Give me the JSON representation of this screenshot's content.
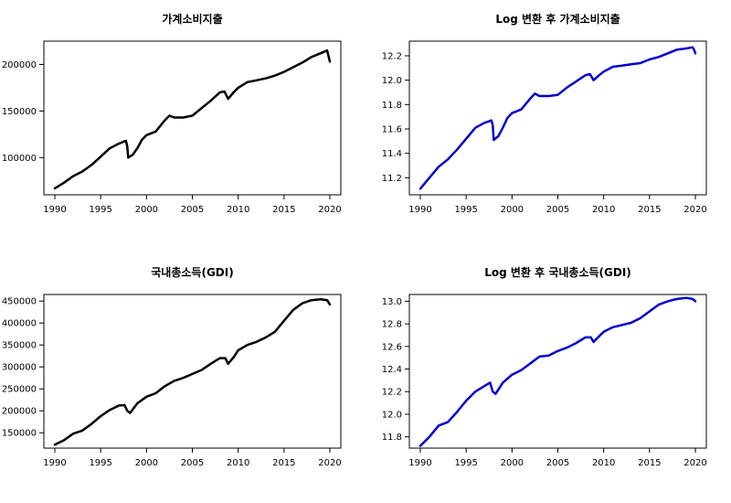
{
  "chart_data": [
    {
      "type": "line",
      "title": "가계소비지출",
      "color": "#000000",
      "xlim": [
        1990,
        2020
      ],
      "ylim": [
        60000,
        225000
      ],
      "xticks": [
        1990,
        1995,
        2000,
        2005,
        2010,
        2015,
        2020
      ],
      "xtick_labels": [
        "1990",
        "1995",
        "2000",
        "2005",
        "2010",
        "2015",
        "2020"
      ],
      "yticks": [
        100000,
        150000,
        200000
      ],
      "ytick_labels": [
        "100000",
        "150000",
        "200000"
      ],
      "x": [
        1990.0,
        1991.0,
        1992.0,
        1993.0,
        1994.0,
        1995.0,
        1996.0,
        1997.0,
        1997.75,
        1997.9,
        1998.0,
        1998.5,
        1999.0,
        1999.5,
        2000.0,
        2001.0,
        2002.0,
        2002.5,
        2003.0,
        2004.0,
        2005.0,
        2006.0,
        2007.0,
        2008.0,
        2008.5,
        2008.9,
        2009.5,
        2010.0,
        2011.0,
        2012.0,
        2013.0,
        2014.0,
        2015.0,
        2016.0,
        2017.0,
        2018.0,
        2019.0,
        2019.7,
        2019.85,
        2020.0
      ],
      "y": [
        67000,
        73000,
        80000,
        85000,
        92000,
        101000,
        110000,
        115000,
        118000,
        112000,
        100000,
        103000,
        110000,
        119000,
        124000,
        128000,
        140000,
        145000,
        143000,
        143000,
        145000,
        153000,
        161000,
        170000,
        171000,
        163000,
        170000,
        175000,
        181000,
        183000,
        185000,
        188000,
        192000,
        197000,
        202000,
        208000,
        212000,
        215000,
        209000,
        203000
      ]
    },
    {
      "type": "line",
      "title": "Log 변환 후 가계소비지출",
      "color": "#0000cc",
      "xlim": [
        1990,
        2020
      ],
      "ylim": [
        11.06,
        12.32
      ],
      "xticks": [
        1990,
        1995,
        2000,
        2005,
        2010,
        2015,
        2020
      ],
      "xtick_labels": [
        "1990",
        "1995",
        "2000",
        "2005",
        "2010",
        "2015",
        "2020"
      ],
      "yticks": [
        11.2,
        11.4,
        11.6,
        11.8,
        12.0,
        12.2
      ],
      "ytick_labels": [
        "11.2",
        "11.4",
        "11.6",
        "11.8",
        "12.0",
        "12.2"
      ],
      "x": [
        1990.0,
        1991.0,
        1992.0,
        1993.0,
        1994.0,
        1995.0,
        1996.0,
        1997.0,
        1997.75,
        1997.9,
        1998.0,
        1998.5,
        1999.0,
        1999.5,
        2000.0,
        2001.0,
        2002.0,
        2002.5,
        2003.0,
        2004.0,
        2005.0,
        2006.0,
        2007.0,
        2008.0,
        2008.5,
        2008.9,
        2009.5,
        2010.0,
        2011.0,
        2012.0,
        2013.0,
        2014.0,
        2015.0,
        2016.0,
        2017.0,
        2018.0,
        2019.0,
        2019.7,
        2019.85,
        2020.0
      ],
      "y": [
        11.11,
        11.2,
        11.29,
        11.35,
        11.43,
        11.52,
        11.61,
        11.65,
        11.67,
        11.63,
        11.51,
        11.54,
        11.61,
        11.69,
        11.73,
        11.76,
        11.85,
        11.89,
        11.87,
        11.87,
        11.88,
        11.94,
        11.99,
        12.04,
        12.05,
        12.0,
        12.04,
        12.07,
        12.11,
        12.12,
        12.13,
        12.14,
        12.17,
        12.19,
        12.22,
        12.25,
        12.26,
        12.27,
        12.25,
        12.22
      ]
    },
    {
      "type": "line",
      "title": "국내총소득(GDI)",
      "color": "#000000",
      "xlim": [
        1990,
        2020
      ],
      "ylim": [
        115000,
        465000
      ],
      "xticks": [
        1990,
        1995,
        2000,
        2005,
        2010,
        2015,
        2020
      ],
      "xtick_labels": [
        "1990",
        "1995",
        "2000",
        "2005",
        "2010",
        "2015",
        "2020"
      ],
      "yticks": [
        150000,
        200000,
        250000,
        300000,
        350000,
        400000,
        450000
      ],
      "ytick_labels": [
        "150000",
        "200000",
        "250000",
        "300000",
        "350000",
        "400000",
        "450000"
      ],
      "x": [
        1990.0,
        1991.0,
        1992.0,
        1993.0,
        1994.0,
        1995.0,
        1996.0,
        1997.0,
        1997.6,
        1997.9,
        1998.2,
        1999.0,
        2000.0,
        2001.0,
        2002.0,
        2003.0,
        2004.0,
        2005.0,
        2006.0,
        2007.0,
        2008.0,
        2008.6,
        2008.9,
        2009.5,
        2010.0,
        2011.0,
        2012.0,
        2013.0,
        2014.0,
        2015.0,
        2016.0,
        2017.0,
        2018.0,
        2019.0,
        2019.7,
        2020.0
      ],
      "y": [
        123000,
        133000,
        148000,
        155000,
        170000,
        188000,
        202000,
        212000,
        213000,
        200000,
        195000,
        217000,
        232000,
        240000,
        256000,
        268000,
        275000,
        284000,
        293000,
        307000,
        320000,
        320000,
        307000,
        322000,
        338000,
        350000,
        357000,
        367000,
        380000,
        405000,
        430000,
        445000,
        452000,
        454000,
        452000,
        442000
      ]
    },
    {
      "type": "line",
      "title": "Log 변환 후 국내총소득(GDI)",
      "color": "#0000cc",
      "xlim": [
        1990,
        2020
      ],
      "ylim": [
        11.7,
        13.06
      ],
      "xticks": [
        1990,
        1995,
        2000,
        2005,
        2010,
        2015,
        2020
      ],
      "xtick_labels": [
        "1990",
        "1995",
        "2000",
        "2005",
        "2010",
        "2015",
        "2020"
      ],
      "yticks": [
        11.8,
        12.0,
        12.2,
        12.4,
        12.6,
        12.8,
        13.0
      ],
      "ytick_labels": [
        "11.8",
        "12.0",
        "12.2",
        "12.4",
        "12.6",
        "12.8",
        "13.0"
      ],
      "x": [
        1990.0,
        1991.0,
        1992.0,
        1993.0,
        1994.0,
        1995.0,
        1996.0,
        1997.0,
        1997.6,
        1997.9,
        1998.2,
        1999.0,
        2000.0,
        2001.0,
        2002.0,
        2003.0,
        2004.0,
        2005.0,
        2006.0,
        2007.0,
        2008.0,
        2008.6,
        2008.9,
        2009.5,
        2010.0,
        2011.0,
        2012.0,
        2013.0,
        2014.0,
        2015.0,
        2016.0,
        2017.0,
        2018.0,
        2019.0,
        2019.7,
        2020.0
      ],
      "y": [
        11.72,
        11.8,
        11.9,
        11.93,
        12.02,
        12.12,
        12.2,
        12.25,
        12.28,
        12.2,
        12.18,
        12.28,
        12.35,
        12.39,
        12.45,
        12.51,
        12.52,
        12.56,
        12.59,
        12.63,
        12.68,
        12.68,
        12.64,
        12.69,
        12.73,
        12.77,
        12.79,
        12.81,
        12.85,
        12.91,
        12.97,
        13.0,
        13.02,
        13.03,
        13.02,
        13.0
      ]
    }
  ]
}
